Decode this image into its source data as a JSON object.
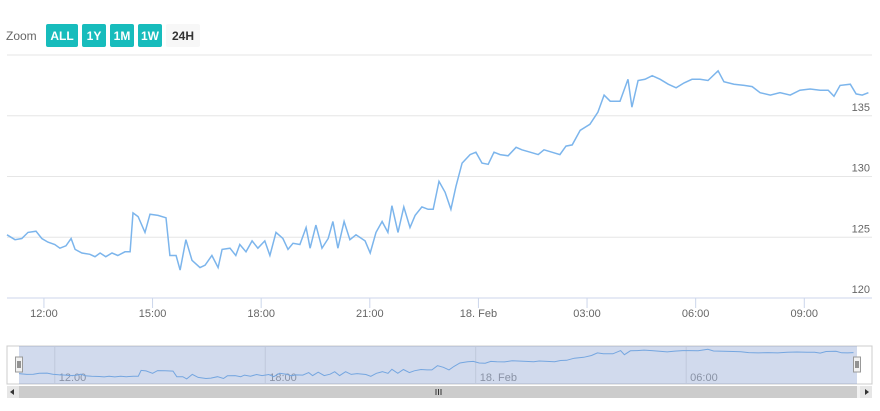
{
  "range_selector": {
    "label": "Zoom",
    "buttons": [
      "ALL",
      "1Y",
      "1M",
      "1W",
      "24H"
    ],
    "selected": 4
  },
  "chart_data": {
    "type": "line",
    "x": [
      10.98,
      11.2,
      11.39,
      11.56,
      11.78,
      11.94,
      12.11,
      12.3,
      12.44,
      12.61,
      12.75,
      12.86,
      13.05,
      13.27,
      13.41,
      13.55,
      13.71,
      13.88,
      14.04,
      14.24,
      14.38,
      14.46,
      14.6,
      14.79,
      14.93,
      15.15,
      15.37,
      15.48,
      15.65,
      15.76,
      15.92,
      16.09,
      16.31,
      16.45,
      16.64,
      16.81,
      16.92,
      17.14,
      17.3,
      17.41,
      17.58,
      17.75,
      17.91,
      18.1,
      18.24,
      18.41,
      18.6,
      18.74,
      18.88,
      19.07,
      19.24,
      19.35,
      19.51,
      19.68,
      19.85,
      19.98,
      20.12,
      20.29,
      20.45,
      20.62,
      20.87,
      21.01,
      21.17,
      21.34,
      21.5,
      21.61,
      21.78,
      21.94,
      22.11,
      22.25,
      22.44,
      22.61,
      22.75,
      22.91,
      23.08,
      23.24,
      23.38,
      23.55,
      23.77,
      23.93,
      24.1,
      24.27,
      24.43,
      24.6,
      24.82,
      25.04,
      25.2,
      25.43,
      25.65,
      25.81,
      26.03,
      26.25,
      26.42,
      26.59,
      26.81,
      27.08,
      27.3,
      27.47,
      27.64,
      27.91,
      28.13,
      28.24,
      28.41,
      28.6,
      28.8,
      29.02,
      29.24,
      29.46,
      29.68,
      29.9,
      30.12,
      30.34,
      30.62,
      30.78,
      31.06,
      31.34,
      31.56,
      31.78,
      32.06,
      32.33,
      32.61,
      32.88,
      33.16,
      33.44,
      33.66,
      33.82,
      33.99,
      34.27,
      34.43,
      34.6,
      34.77
    ],
    "series": [
      {
        "color": "#7cb5ec",
        "values": [
          125.2,
          124.8,
          124.9,
          125.4,
          125.5,
          124.9,
          124.6,
          124.4,
          124.1,
          124.3,
          124.9,
          124.0,
          123.7,
          123.6,
          123.4,
          123.7,
          123.4,
          123.7,
          123.5,
          123.8,
          123.8,
          127.0,
          126.7,
          125.4,
          126.9,
          126.8,
          126.6,
          123.5,
          123.5,
          122.3,
          124.8,
          123.1,
          122.5,
          122.7,
          123.5,
          122.5,
          124.0,
          124.1,
          123.5,
          124.4,
          123.8,
          124.7,
          124.1,
          124.7,
          123.5,
          125.4,
          124.9,
          124.0,
          124.5,
          124.4,
          125.8,
          124.1,
          126.0,
          124.1,
          124.9,
          126.3,
          124.1,
          126.3,
          124.8,
          125.2,
          124.7,
          123.7,
          125.4,
          126.3,
          125.4,
          127.6,
          125.4,
          127.5,
          125.8,
          126.8,
          127.5,
          127.3,
          127.3,
          129.6,
          128.7,
          127.3,
          129.2,
          131.1,
          131.8,
          132.0,
          131.1,
          131.0,
          132.0,
          131.8,
          131.7,
          132.4,
          132.2,
          132.0,
          131.8,
          132.2,
          132.0,
          131.8,
          132.5,
          132.6,
          133.8,
          134.3,
          135.3,
          136.7,
          136.2,
          136.2,
          138.0,
          135.7,
          137.9,
          138.0,
          138.3,
          138.0,
          137.6,
          137.3,
          137.7,
          138.0,
          138.0,
          137.9,
          138.7,
          137.8,
          137.6,
          137.5,
          137.4,
          136.9,
          136.7,
          136.9,
          136.7,
          137.1,
          137.2,
          137.1,
          137.1,
          136.6,
          137.5,
          137.6,
          136.8,
          136.7,
          136.9
        ]
      }
    ],
    "xlim": [
      10.98,
      34.87
    ],
    "xticks": [
      {
        "value": 12,
        "label": "12:00"
      },
      {
        "value": 15,
        "label": "15:00"
      },
      {
        "value": 18,
        "label": "18:00"
      },
      {
        "value": 21,
        "label": "21:00"
      },
      {
        "value": 24,
        "label": "18. Feb"
      },
      {
        "value": 27,
        "label": "03:00"
      },
      {
        "value": 30,
        "label": "06:00"
      },
      {
        "value": 33,
        "label": "09:00"
      }
    ],
    "ylim": [
      120,
      140
    ],
    "yticks": [
      120,
      125,
      130,
      135
    ],
    "grid": true,
    "navigator": {
      "xticks": [
        {
          "value": 12,
          "label": "12:00"
        },
        {
          "value": 18,
          "label": "18:00"
        },
        {
          "value": 24,
          "label": "18. Feb"
        },
        {
          "value": 30,
          "label": "06:00"
        }
      ]
    }
  }
}
